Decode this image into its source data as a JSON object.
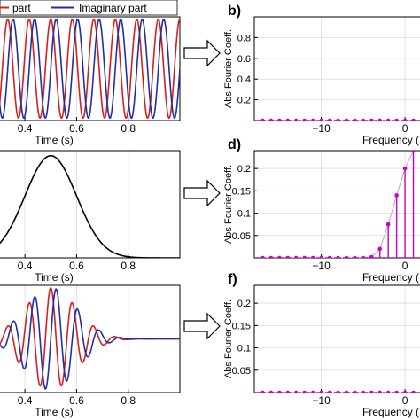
{
  "colors": {
    "real": "#d42020",
    "imag": "#1f2fa8",
    "envelope": "#000000",
    "stem": "#c800c8",
    "stem_light": "#e38ae3",
    "grid": "#e1e1e1",
    "arrow": "#000000"
  },
  "legend": {
    "real_label": "part",
    "imag_label": "Imaginary part"
  },
  "chart_data": [
    {
      "id": "a",
      "type": "line",
      "panel_letter": "",
      "xlabel": "Time (s)",
      "ylabel": "",
      "xlim": [
        0.3,
        1.0
      ],
      "ylim": [
        -1.05,
        1.05
      ],
      "xticks": [
        0.4,
        0.6,
        0.8
      ],
      "xtick_labels": [
        "0.4",
        "0.6",
        "0.8"
      ],
      "grid": true,
      "legend_placement": "top",
      "function": {
        "kind": "complex-exponential",
        "frequency_hz": 12,
        "amplitude": 1
      },
      "series": [
        {
          "name": "part",
          "part": "real"
        },
        {
          "name": "Imaginary part",
          "part": "imag"
        }
      ]
    },
    {
      "id": "b",
      "type": "stem",
      "panel_letter": "b)",
      "xlabel": "Frequency (",
      "ylabel": "Abs Fourier Coeff.",
      "xlim": [
        -18,
        2
      ],
      "ylim": [
        0,
        1.0
      ],
      "xticks": [
        -10,
        0
      ],
      "xtick_labels": [
        "−10",
        "0"
      ],
      "yticks": [
        0.2,
        0.4,
        0.6,
        0.8
      ],
      "ytick_labels": [
        "0.2",
        "0.4",
        "0.6",
        "0.8"
      ],
      "grid": true,
      "x": [
        -17,
        -16,
        -15,
        -14,
        -13,
        -12,
        -11,
        -10,
        -9,
        -8,
        -7,
        -6,
        -5,
        -4,
        -3,
        -2,
        -1,
        0,
        1
      ],
      "values": [
        0,
        0,
        0,
        0,
        0,
        0,
        0,
        0,
        0,
        0,
        0,
        0,
        0,
        0,
        0,
        0,
        0,
        0,
        0
      ]
    },
    {
      "id": "c",
      "type": "line",
      "panel_letter": "",
      "xlabel": "Time (s)",
      "ylabel": "",
      "xlim": [
        0.3,
        1.0
      ],
      "ylim": [
        0,
        1.05
      ],
      "xticks": [
        0.4,
        0.6,
        0.8
      ],
      "xtick_labels": [
        "0.4",
        "0.6",
        "0.8"
      ],
      "grid": true,
      "function": {
        "kind": "gaussian",
        "center_s": 0.5,
        "sigma_s": 0.1,
        "amplitude": 1
      },
      "series": [
        {
          "name": "",
          "part": "envelope"
        }
      ]
    },
    {
      "id": "d",
      "type": "stem",
      "panel_letter": "d)",
      "xlabel": "Frequency (",
      "ylabel": "Abs Fourier Coeff.",
      "xlim": [
        -18,
        2
      ],
      "ylim": [
        0,
        0.24
      ],
      "xticks": [
        -10,
        0
      ],
      "xtick_labels": [
        "−10",
        "0"
      ],
      "yticks": [
        0.05,
        0.1,
        0.15,
        0.2
      ],
      "ytick_labels": [
        "0.05",
        "0.1",
        "0.15",
        "0.2"
      ],
      "grid": true,
      "x": [
        -17,
        -16,
        -15,
        -14,
        -13,
        -12,
        -11,
        -10,
        -9,
        -8,
        -7,
        -6,
        -5,
        -4,
        -3,
        -2,
        -1,
        0,
        1
      ],
      "values": [
        0,
        0,
        0,
        0,
        0,
        0,
        0,
        0,
        0,
        0,
        0,
        0,
        0,
        0.002,
        0.02,
        0.075,
        0.14,
        0.2,
        0.24
      ]
    },
    {
      "id": "e",
      "type": "line",
      "panel_letter": "",
      "xlabel": "Time (s)",
      "ylabel": "",
      "xlim": [
        0.3,
        1.0
      ],
      "ylim": [
        -1.05,
        1.05
      ],
      "xticks": [
        0.4,
        0.6,
        0.8
      ],
      "xtick_labels": [
        "0.4",
        "0.6",
        "0.8"
      ],
      "grid": true,
      "function": {
        "kind": "gaussian-modulated",
        "frequency_hz": 12,
        "center_s": 0.5,
        "sigma_s": 0.1,
        "amplitude": 1
      },
      "series": [
        {
          "name": "",
          "part": "real"
        },
        {
          "name": "",
          "part": "imag"
        }
      ]
    },
    {
      "id": "f",
      "type": "stem",
      "panel_letter": "f)",
      "xlabel": "Frequency (",
      "ylabel": "Abs Fourier Coeff.",
      "xlim": [
        -18,
        2
      ],
      "ylim": [
        0,
        0.24
      ],
      "xticks": [
        -10,
        0
      ],
      "xtick_labels": [
        "−10",
        "0"
      ],
      "yticks": [
        0.05,
        0.1,
        0.15,
        0.2
      ],
      "ytick_labels": [
        "0.05",
        "0.1",
        "0.15",
        "0.2"
      ],
      "grid": true,
      "x": [
        -17,
        -16,
        -15,
        -14,
        -13,
        -12,
        -11,
        -10,
        -9,
        -8,
        -7,
        -6,
        -5,
        -4,
        -3,
        -2,
        -1,
        0,
        1
      ],
      "values": [
        0,
        0,
        0,
        0,
        0,
        0,
        0,
        0,
        0,
        0,
        0,
        0,
        0,
        0,
        0,
        0,
        0,
        0,
        0
      ]
    }
  ]
}
